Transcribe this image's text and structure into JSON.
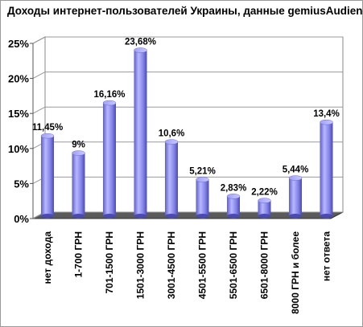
{
  "chart_data": {
    "type": "bar",
    "title": "Доходы интернет-пользователей Украины, данные gemiusAudience",
    "categories": [
      "нет дохода",
      "1-700 ГРН",
      "701-1500 ГРН",
      "1501-3000 ГРН",
      "3001-4500 ГРН",
      "4501-5500 ГРН",
      "5501-6500 ГРН",
      "6501-8000 ГРН",
      "8000 ГРН и более",
      "нет ответа"
    ],
    "values": [
      11.45,
      9,
      16.16,
      23.68,
      10.6,
      5.21,
      2.83,
      2.22,
      5.44,
      13.4
    ],
    "value_labels": [
      "11,45%",
      "9%",
      "16,16%",
      "23,68%",
      "10,6%",
      "5,21%",
      "2,83%",
      "2,22%",
      "5,44%",
      "13,4%"
    ],
    "yticks": [
      0,
      5,
      10,
      15,
      20,
      25
    ],
    "ytick_labels": [
      "0%",
      "5%",
      "10%",
      "15%",
      "20%",
      "25%"
    ],
    "ylim": [
      0,
      25
    ],
    "xlabel": "",
    "ylabel": "",
    "grid": true,
    "bar_color": "#8b8bef",
    "floor_color": "#5a5a5a",
    "wall_color": "#ffffff"
  }
}
